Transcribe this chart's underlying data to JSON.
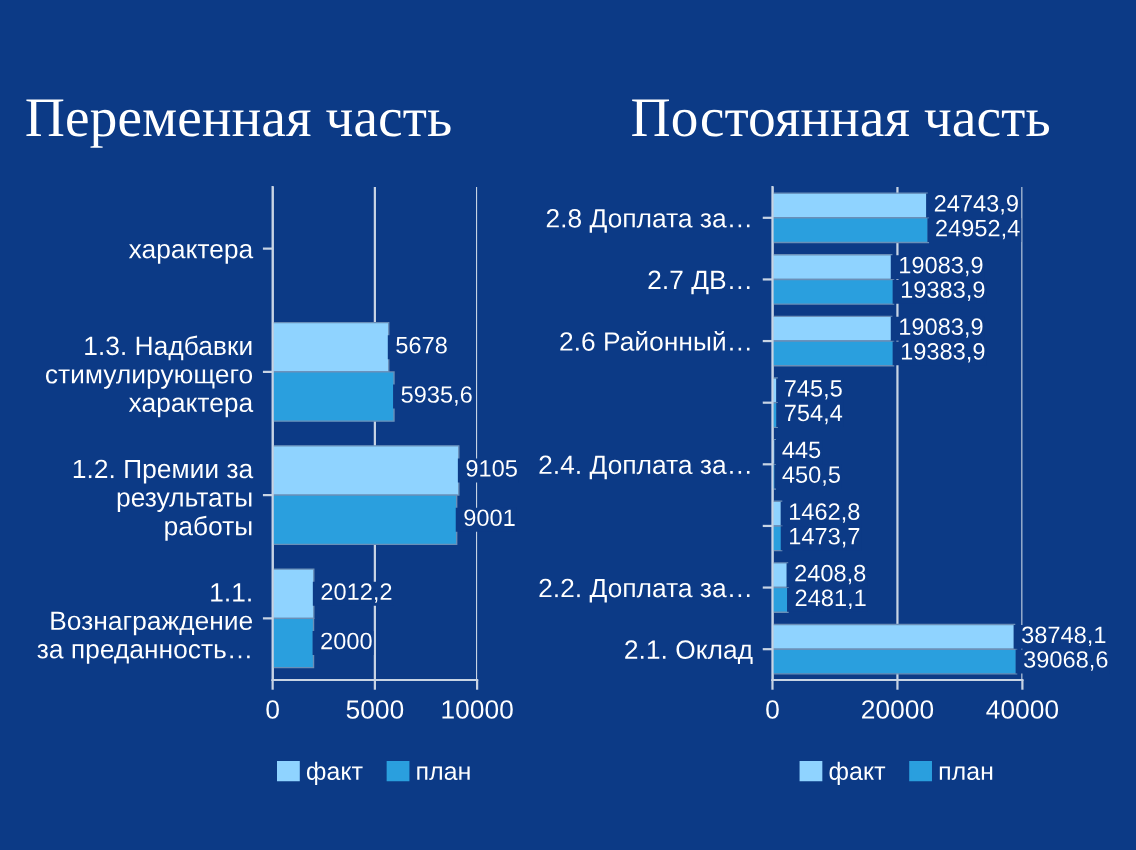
{
  "chart_data": [
    {
      "type": "bar",
      "orientation": "horizontal",
      "title": "Переменная часть",
      "categories": [
        "характера",
        "1.3. Надбавки\nстимулирующего\nхарактера",
        "1.2. Премии за\nрезультаты\nработы",
        "1.1.\nВознаграждение\nза преданность…"
      ],
      "series": [
        {
          "name": "факт",
          "color": "#8fd3ff",
          "values": [
            null,
            5678,
            9105,
            2012.2
          ],
          "value_labels": [
            null,
            "5678",
            "9105",
            "2012,2"
          ]
        },
        {
          "name": "план",
          "color": "#2a9fde",
          "values": [
            null,
            5935.6,
            9001,
            2000
          ],
          "value_labels": [
            null,
            "5935,6",
            "9001",
            "2000"
          ]
        }
      ],
      "xlim": [
        0,
        10000
      ],
      "xticks": [
        0,
        5000,
        10000
      ],
      "grid": "x",
      "legend": "bottom"
    },
    {
      "type": "bar",
      "orientation": "horizontal",
      "title": "Постоянная часть",
      "categories": [
        "2.8 Доплата за…",
        "2.7 ДВ…",
        "2.6 Районный…",
        null,
        "2.4. Доплата за…",
        null,
        "2.2. Доплата за…",
        "2.1. Оклад"
      ],
      "series": [
        {
          "name": "факт",
          "color": "#8fd3ff",
          "values": [
            24743.9,
            19083.9,
            19083.9,
            745.5,
            445,
            1462.8,
            2408.8,
            38748.1
          ],
          "value_labels": [
            "24743,9",
            "19083,9",
            "19083,9",
            "745,5",
            "445",
            "1462,8",
            "2408,8",
            "38748,1"
          ]
        },
        {
          "name": "план",
          "color": "#2a9fde",
          "values": [
            24952.4,
            19383.9,
            19383.9,
            754.4,
            450.5,
            1473.7,
            2481.1,
            39068.6
          ],
          "value_labels": [
            "24952,4",
            "19383,9",
            "19383,9",
            "754,4",
            "450,5",
            "1473,7",
            "2481,1",
            "39068,6"
          ]
        }
      ],
      "xlim": [
        0,
        40000
      ],
      "xticks": [
        0,
        20000,
        40000
      ],
      "grid": "x",
      "legend": "bottom"
    }
  ]
}
